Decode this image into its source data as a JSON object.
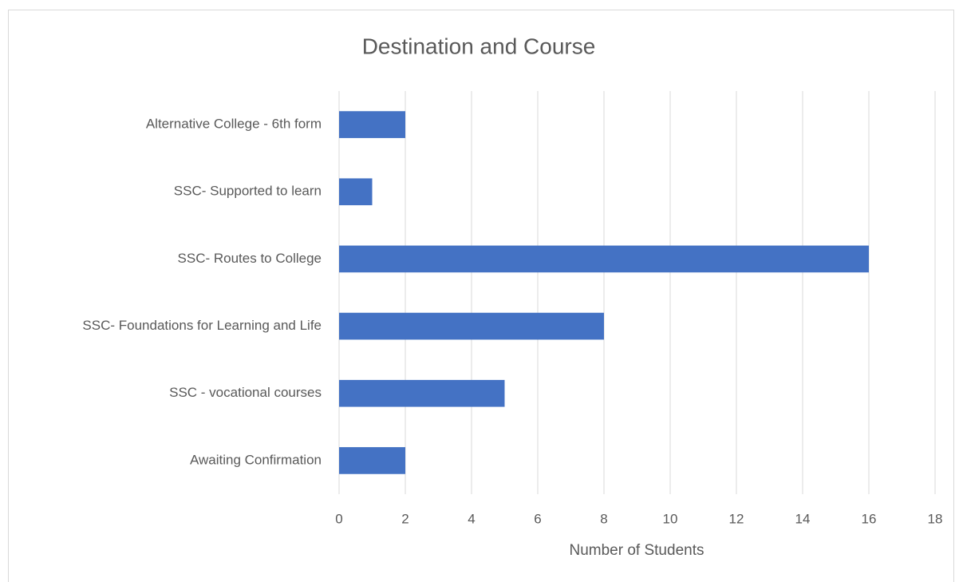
{
  "chart_data": {
    "type": "bar",
    "orientation": "horizontal",
    "title": "Destination and Course",
    "x_label": "Number of Students",
    "categories": [
      "Alternative College - 6th form",
      "SSC- Supported to learn",
      "SSC- Routes to College",
      "SSC- Foundations for Learning and Life",
      "SSC - vocational courses",
      "Awaiting Confirmation"
    ],
    "values": [
      2,
      1,
      16,
      8,
      5,
      2
    ],
    "color": "#4472c4",
    "xlim": [
      0,
      18
    ],
    "xticks": [
      0,
      2,
      4,
      6,
      8,
      10,
      12,
      14,
      16,
      18
    ],
    "grid": true
  }
}
